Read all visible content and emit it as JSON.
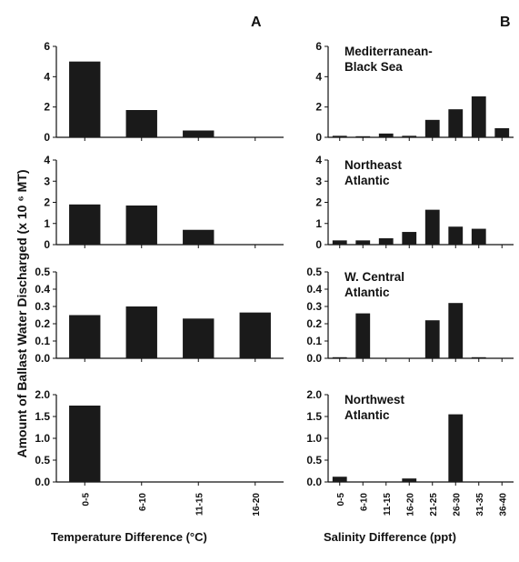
{
  "figure": {
    "panel_a": "A",
    "panel_b": "B",
    "ylabel": "Amount of Ballast Water Discharged (x 10 ⁶ MT)",
    "xlabel_a": "Temperature Difference (°C)",
    "xlabel_b": "Salinity Difference (ppt)"
  },
  "chart_data": [
    {
      "type": "bar",
      "panel": "A",
      "region": "",
      "categories": [
        "0-5",
        "6-10",
        "11-15",
        "16-20"
      ],
      "values": [
        5.0,
        1.8,
        0.45,
        0
      ],
      "ylim": [
        0,
        6
      ],
      "yticks": [
        "0",
        "2",
        "4",
        "6"
      ],
      "show_category_labels": false
    },
    {
      "type": "bar",
      "panel": "B",
      "region": "Mediterranean-\nBlack Sea",
      "categories": [
        "0-5",
        "6-10",
        "11-15",
        "16-20",
        "21-25",
        "26-30",
        "31-35",
        "36-40"
      ],
      "values": [
        0.1,
        0.02,
        0.25,
        0.1,
        1.15,
        1.85,
        2.7,
        0.6
      ],
      "ylim": [
        0,
        6
      ],
      "yticks": [
        "0",
        "2",
        "4",
        "6"
      ],
      "show_category_labels": false
    },
    {
      "type": "bar",
      "panel": "A",
      "region": "",
      "categories": [
        "0-5",
        "6-10",
        "11-15",
        "16-20"
      ],
      "values": [
        1.9,
        1.85,
        0.7,
        0
      ],
      "ylim": [
        0,
        4
      ],
      "yticks": [
        "0",
        "1",
        "2",
        "3",
        "4"
      ],
      "show_category_labels": false
    },
    {
      "type": "bar",
      "panel": "B",
      "region": "Northeast\nAtlantic",
      "categories": [
        "0-5",
        "6-10",
        "11-15",
        "16-20",
        "21-25",
        "26-30",
        "31-35",
        "36-40"
      ],
      "values": [
        0.2,
        0.2,
        0.3,
        0.6,
        1.65,
        0.85,
        0.75,
        0
      ],
      "ylim": [
        0,
        4
      ],
      "yticks": [
        "0",
        "1",
        "2",
        "3",
        "4"
      ],
      "show_category_labels": false
    },
    {
      "type": "bar",
      "panel": "A",
      "region": "",
      "categories": [
        "0-5",
        "6-10",
        "11-15",
        "16-20"
      ],
      "values": [
        0.25,
        0.3,
        0.23,
        0.265
      ],
      "ylim": [
        0,
        0.5
      ],
      "yticks": [
        "0.0",
        "0.1",
        "0.2",
        "0.3",
        "0.4",
        "0.5"
      ],
      "show_category_labels": false
    },
    {
      "type": "bar",
      "panel": "B",
      "region": "W. Central\nAtlantic",
      "categories": [
        "0-5",
        "6-10",
        "11-15",
        "16-20",
        "21-25",
        "26-30",
        "31-35",
        "36-40"
      ],
      "values": [
        0.005,
        0.26,
        0,
        0,
        0.22,
        0.32,
        0.005,
        0
      ],
      "ylim": [
        0,
        0.5
      ],
      "yticks": [
        "0.0",
        "0.1",
        "0.2",
        "0.3",
        "0.4",
        "0.5"
      ],
      "show_category_labels": false
    },
    {
      "type": "bar",
      "panel": "A",
      "region": "",
      "categories": [
        "0-5",
        "6-10",
        "11-15",
        "16-20"
      ],
      "values": [
        1.75,
        0,
        0,
        0
      ],
      "ylim": [
        0,
        2.0
      ],
      "yticks": [
        "0.0",
        "0.5",
        "1.0",
        "1.5",
        "2.0"
      ],
      "show_category_labels": true
    },
    {
      "type": "bar",
      "panel": "B",
      "region": "Northwest\nAtlantic",
      "categories": [
        "0-5",
        "6-10",
        "11-15",
        "16-20",
        "21-25",
        "26-30",
        "31-35",
        "36-40"
      ],
      "values": [
        0.12,
        0,
        0,
        0.08,
        0,
        1.55,
        0,
        0
      ],
      "ylim": [
        0,
        2.0
      ],
      "yticks": [
        "0.0",
        "0.5",
        "1.0",
        "1.5",
        "2.0"
      ],
      "show_category_labels": true
    }
  ]
}
